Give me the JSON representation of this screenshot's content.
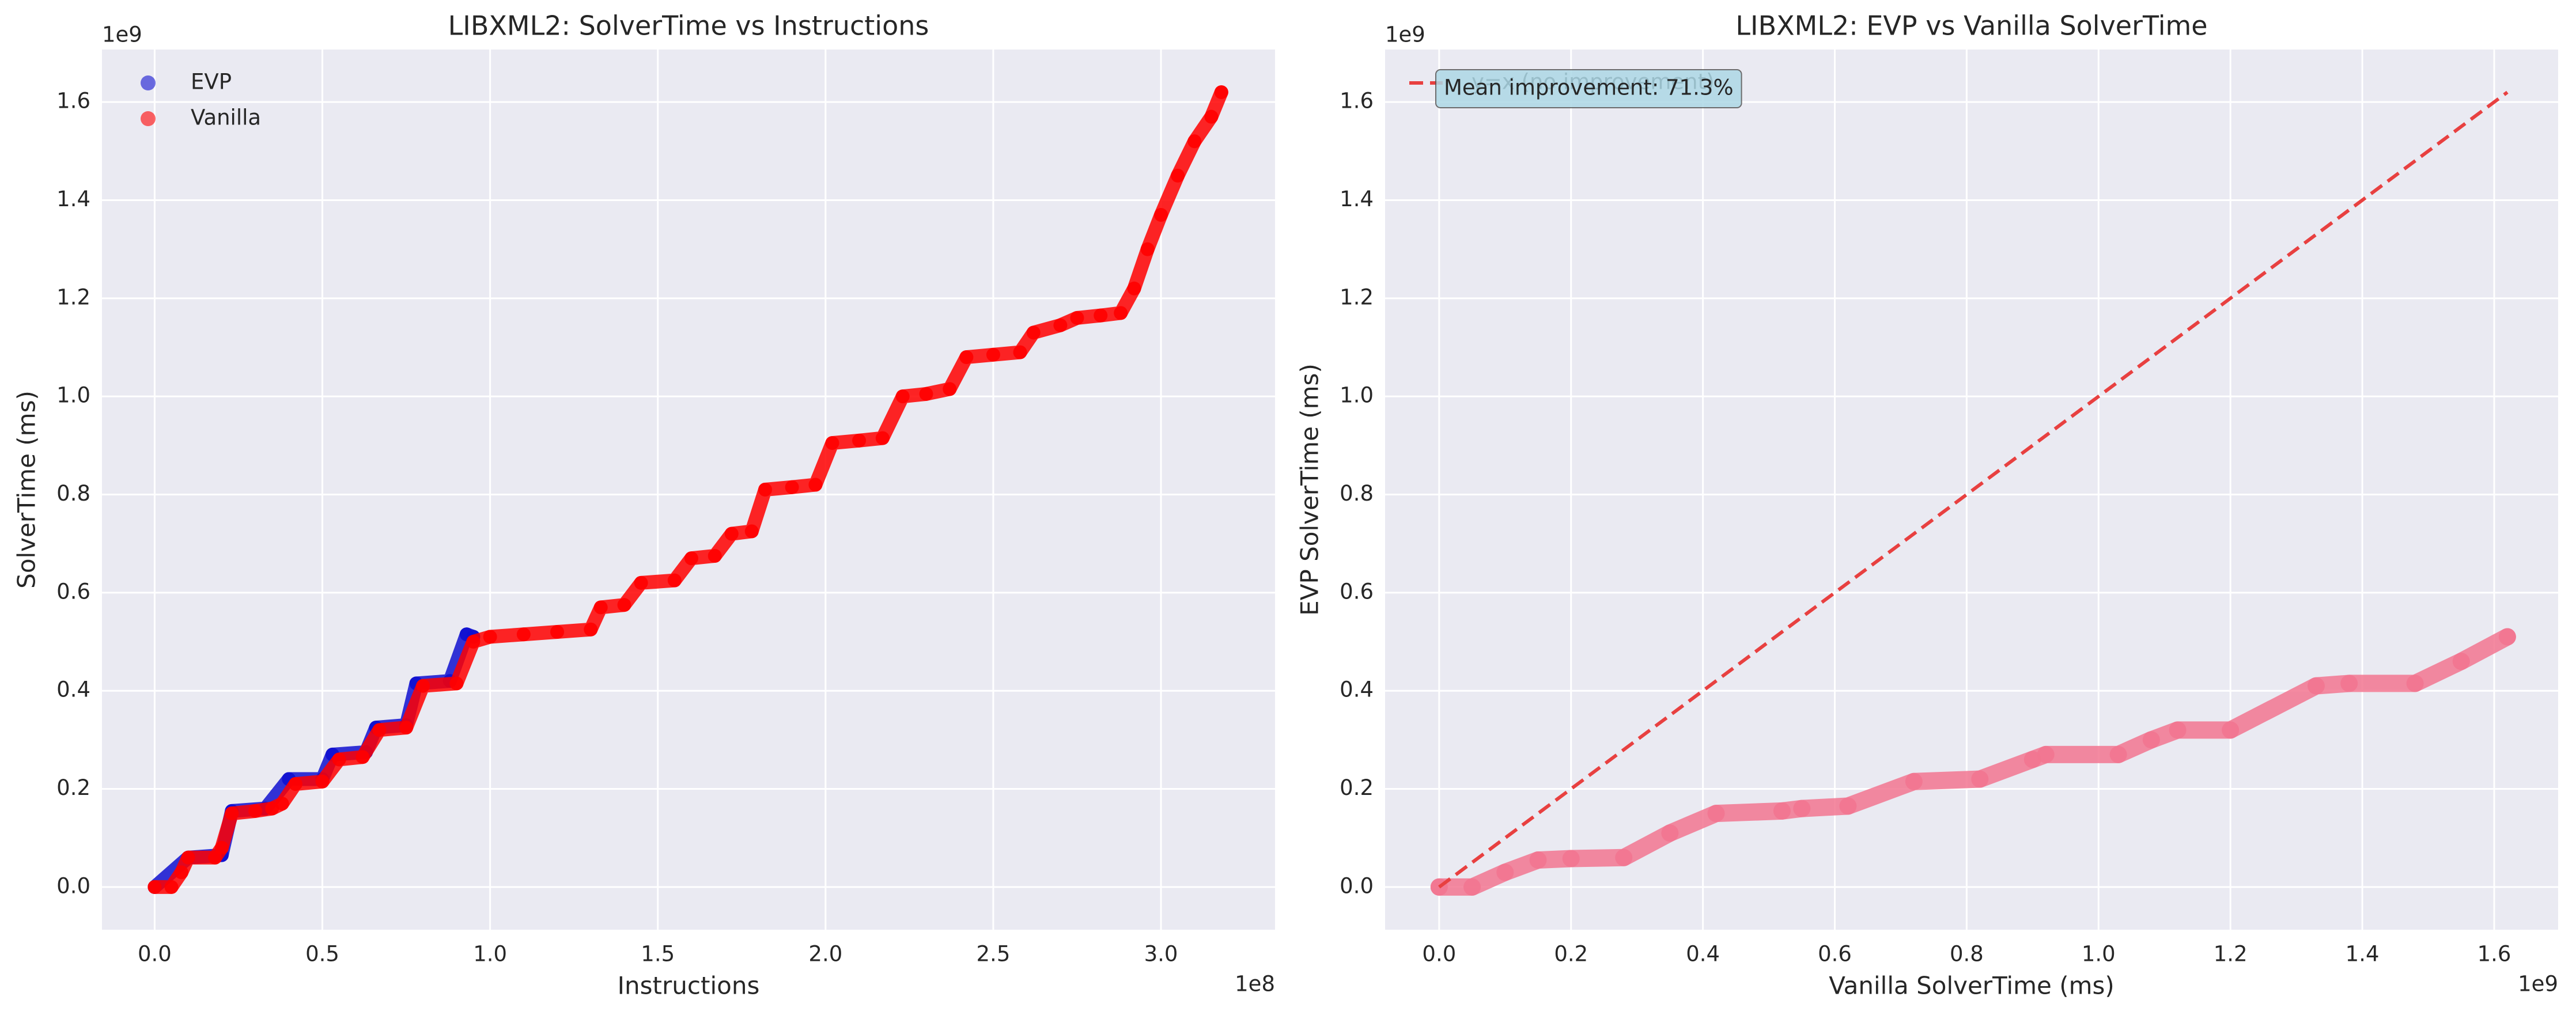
{
  "chart_data": [
    {
      "type": "scatter",
      "title": "LIBXML2: SolverTime vs Instructions",
      "xlabel": "Instructions",
      "ylabel": "SolverTime (ms)",
      "x_offset_label": "1e8",
      "y_offset_label": "1e9",
      "xlim": [
        -0.157,
        3.34
      ],
      "ylim": [
        -0.087,
        1.707
      ],
      "xticks": [
        {
          "value": 0,
          "label": "0.0"
        },
        {
          "value": 0.5,
          "label": "0.5"
        },
        {
          "value": 1,
          "label": "1.0"
        },
        {
          "value": 1.5,
          "label": "1.5"
        },
        {
          "value": 2,
          "label": "2.0"
        },
        {
          "value": 2.5,
          "label": "2.5"
        },
        {
          "value": 3,
          "label": "3.0"
        }
      ],
      "yticks": [
        {
          "value": 0,
          "label": "0.0"
        },
        {
          "value": 0.2,
          "label": "0.2"
        },
        {
          "value": 0.4,
          "label": "0.4"
        },
        {
          "value": 0.6,
          "label": "0.6"
        },
        {
          "value": 0.8,
          "label": "0.8"
        },
        {
          "value": 1,
          "label": "1.0"
        },
        {
          "value": 1.2,
          "label": "1.2"
        },
        {
          "value": 1.4,
          "label": "1.4"
        },
        {
          "value": 1.6,
          "label": "1.6"
        }
      ],
      "grid": true,
      "legend": "upper left",
      "series": [
        {
          "name": "EVP",
          "color": "#1010d0",
          "x": [
            0,
            0.1,
            0.2,
            0.23,
            0.33,
            0.4,
            0.5,
            0.53,
            0.63,
            0.66,
            0.75,
            0.78,
            0.88,
            0.93,
            0.95
          ],
          "values": [
            0,
            0.06,
            0.065,
            0.155,
            0.16,
            0.22,
            0.22,
            0.27,
            0.275,
            0.325,
            0.33,
            0.415,
            0.42,
            0.515,
            0.51
          ]
        },
        {
          "name": "Vanilla",
          "color": "#ff0000",
          "x": [
            0,
            0.05,
            0.08,
            0.1,
            0.18,
            0.2,
            0.23,
            0.3,
            0.35,
            0.38,
            0.42,
            0.5,
            0.55,
            0.62,
            0.67,
            0.75,
            0.8,
            0.9,
            0.95,
            1.0,
            1.1,
            1.2,
            1.3,
            1.33,
            1.4,
            1.45,
            1.55,
            1.6,
            1.67,
            1.72,
            1.78,
            1.82,
            1.9,
            1.97,
            2.02,
            2.1,
            2.17,
            2.23,
            2.3,
            2.37,
            2.42,
            2.5,
            2.58,
            2.62,
            2.7,
            2.75,
            2.82,
            2.88,
            2.92,
            2.96,
            3.0,
            3.05,
            3.1,
            3.15,
            3.18
          ],
          "values": [
            0,
            0,
            0.03,
            0.06,
            0.06,
            0.08,
            0.15,
            0.155,
            0.16,
            0.17,
            0.21,
            0.215,
            0.26,
            0.265,
            0.32,
            0.325,
            0.41,
            0.415,
            0.5,
            0.51,
            0.515,
            0.52,
            0.525,
            0.57,
            0.575,
            0.62,
            0.625,
            0.67,
            0.675,
            0.72,
            0.725,
            0.81,
            0.815,
            0.82,
            0.905,
            0.91,
            0.915,
            1.0,
            1.005,
            1.015,
            1.08,
            1.085,
            1.09,
            1.13,
            1.145,
            1.16,
            1.165,
            1.17,
            1.22,
            1.3,
            1.37,
            1.45,
            1.52,
            1.57,
            1.62
          ]
        }
      ]
    },
    {
      "type": "scatter",
      "title": "LIBXML2: EVP vs Vanilla SolverTime",
      "xlabel": "Vanilla SolverTime (ms)",
      "ylabel": "EVP SolverTime (ms)",
      "x_offset_label": "1e9",
      "y_offset_label": "1e9",
      "xlim": [
        -0.082,
        1.697
      ],
      "ylim": [
        -0.087,
        1.707
      ],
      "xticks": [
        {
          "value": 0,
          "label": "0.0"
        },
        {
          "value": 0.2,
          "label": "0.2"
        },
        {
          "value": 0.4,
          "label": "0.4"
        },
        {
          "value": 0.6,
          "label": "0.6"
        },
        {
          "value": 0.8,
          "label": "0.8"
        },
        {
          "value": 1,
          "label": "1.0"
        },
        {
          "value": 1.2,
          "label": "1.2"
        },
        {
          "value": 1.4,
          "label": "1.4"
        },
        {
          "value": 1.6,
          "label": "1.6"
        }
      ],
      "yticks": [
        {
          "value": 0,
          "label": "0.0"
        },
        {
          "value": 0.2,
          "label": "0.2"
        },
        {
          "value": 0.4,
          "label": "0.4"
        },
        {
          "value": 0.6,
          "label": "0.6"
        },
        {
          "value": 0.8,
          "label": "0.8"
        },
        {
          "value": 1,
          "label": "1.0"
        },
        {
          "value": 1.2,
          "label": "1.2"
        },
        {
          "value": 1.4,
          "label": "1.4"
        },
        {
          "value": 1.6,
          "label": "1.6"
        }
      ],
      "grid": true,
      "legend": "upper left",
      "annotation": "Mean improvement: 71.3%",
      "series": [
        {
          "color": "#f27590",
          "x": [
            0,
            0.05,
            0.1,
            0.15,
            0.2,
            0.28,
            0.35,
            0.42,
            0.52,
            0.55,
            0.62,
            0.72,
            0.82,
            0.9,
            0.92,
            1.03,
            1.08,
            1.12,
            1.2,
            1.33,
            1.38,
            1.48,
            1.55,
            1.62
          ],
          "values": [
            0,
            0,
            0.03,
            0.055,
            0.058,
            0.06,
            0.11,
            0.15,
            0.155,
            0.16,
            0.165,
            0.215,
            0.22,
            0.26,
            0.27,
            0.27,
            0.3,
            0.32,
            0.32,
            0.41,
            0.415,
            0.415,
            0.46,
            0.51
          ]
        },
        {
          "name": "y=x (no improvement)",
          "color": "#e84040",
          "linestyle": "dashed",
          "x": [
            0,
            1.62
          ],
          "values": [
            0,
            1.62
          ]
        }
      ]
    }
  ]
}
